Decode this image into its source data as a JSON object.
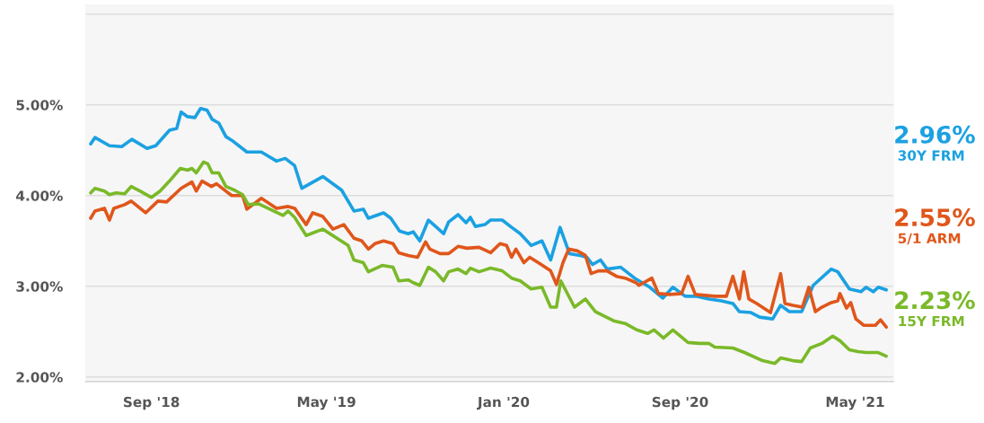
{
  "chart_data": {
    "type": "line",
    "xlim": [
      "2018-06-02",
      "2021-06-23"
    ],
    "ylim": [
      1.95,
      6.1
    ],
    "xticks": [
      {
        "value": "2018-09-01",
        "label": "Sep '18"
      },
      {
        "value": "2019-05-01",
        "label": "May '19"
      },
      {
        "value": "2020-01-01",
        "label": "Jan '20"
      },
      {
        "value": "2020-09-01",
        "label": "Sep '20"
      },
      {
        "value": "2021-05-01",
        "label": "May '21"
      }
    ],
    "yticks": [
      {
        "value": 2,
        "label": "2.00%"
      },
      {
        "value": 3,
        "label": "3.00%"
      },
      {
        "value": 4,
        "label": "4.00%"
      },
      {
        "value": 5,
        "label": "5.00%"
      },
      {
        "value": 6,
        "label": null
      }
    ],
    "grid": "y",
    "legend": false,
    "marker": "none",
    "line_style": "solid",
    "series": [
      {
        "name": "30Y FRM",
        "color": "#1ba1e2",
        "x": [
          "2018-06-09",
          "2018-06-15",
          "2018-07-05",
          "2018-07-22",
          "2018-08-05",
          "2018-08-26",
          "2018-09-07",
          "2018-09-26",
          "2018-10-06",
          "2018-10-12",
          "2018-10-21",
          "2018-10-31",
          "2018-11-08",
          "2018-11-17",
          "2018-11-24",
          "2018-12-03",
          "2018-12-13",
          "2018-12-21",
          "2019-01-11",
          "2019-01-31",
          "2019-02-21",
          "2019-03-05",
          "2019-03-18",
          "2019-03-28",
          "2019-04-26",
          "2019-05-22",
          "2019-06-08",
          "2019-06-21",
          "2019-06-28",
          "2019-07-19",
          "2019-07-29",
          "2019-08-10",
          "2019-08-22",
          "2019-08-29",
          "2019-09-07",
          "2019-09-19",
          "2019-09-29",
          "2019-10-10",
          "2019-10-17",
          "2019-10-30",
          "2019-11-10",
          "2019-11-16",
          "2019-11-23",
          "2019-12-06",
          "2019-12-14",
          "2019-12-30",
          "2020-01-12",
          "2020-01-24",
          "2020-02-08",
          "2020-02-23",
          "2020-03-06",
          "2020-03-19",
          "2020-04-01",
          "2020-04-16",
          "2020-04-25",
          "2020-05-03",
          "2020-05-14",
          "2020-05-23",
          "2020-06-11",
          "2020-06-30",
          "2020-07-21",
          "2020-08-08",
          "2020-08-22",
          "2020-09-08",
          "2020-09-24",
          "2020-10-11",
          "2020-10-28",
          "2020-11-13",
          "2020-11-22",
          "2020-12-08",
          "2020-12-20",
          "2021-01-07",
          "2021-01-18",
          "2021-01-30",
          "2021-02-16",
          "2021-03-04",
          "2021-03-29",
          "2021-04-07",
          "2021-04-23",
          "2021-05-09",
          "2021-05-16",
          "2021-05-26",
          "2021-06-02",
          "2021-06-13"
        ],
        "values": [
          4.57,
          4.64,
          4.55,
          4.54,
          4.62,
          4.52,
          4.55,
          4.72,
          4.74,
          4.92,
          4.87,
          4.86,
          4.96,
          4.94,
          4.84,
          4.8,
          4.65,
          4.61,
          4.48,
          4.48,
          4.38,
          4.41,
          4.33,
          4.08,
          4.21,
          4.06,
          3.83,
          3.85,
          3.75,
          3.81,
          3.75,
          3.61,
          3.58,
          3.6,
          3.5,
          3.73,
          3.66,
          3.58,
          3.71,
          3.79,
          3.7,
          3.76,
          3.66,
          3.68,
          3.73,
          3.73,
          3.65,
          3.58,
          3.45,
          3.5,
          3.29,
          3.65,
          3.36,
          3.34,
          3.32,
          3.24,
          3.29,
          3.19,
          3.21,
          3.09,
          2.99,
          2.87,
          2.99,
          2.89,
          2.89,
          2.86,
          2.84,
          2.81,
          2.72,
          2.71,
          2.66,
          2.64,
          2.79,
          2.72,
          2.72,
          3.01,
          3.19,
          3.16,
          2.97,
          2.94,
          2.99,
          2.94,
          2.99,
          2.96
        ]
      },
      {
        "name": "5/1 ARM",
        "color": "#e0561b",
        "x": [
          "2018-06-09",
          "2018-06-15",
          "2018-06-28",
          "2018-07-05",
          "2018-07-11",
          "2018-07-26",
          "2018-08-04",
          "2018-08-24",
          "2018-09-10",
          "2018-09-22",
          "2018-10-12",
          "2018-10-27",
          "2018-11-02",
          "2018-11-10",
          "2018-11-23",
          "2018-11-30",
          "2018-12-21",
          "2019-01-05",
          "2019-01-11",
          "2019-01-31",
          "2019-02-21",
          "2019-03-09",
          "2019-03-18",
          "2019-04-03",
          "2019-04-12",
          "2019-04-26",
          "2019-05-10",
          "2019-05-25",
          "2019-06-08",
          "2019-06-19",
          "2019-06-28",
          "2019-07-07",
          "2019-07-19",
          "2019-08-01",
          "2019-08-09",
          "2019-08-22",
          "2019-09-04",
          "2019-09-15",
          "2019-09-21",
          "2019-10-05",
          "2019-10-17",
          "2019-10-30",
          "2019-11-11",
          "2019-11-28",
          "2019-12-14",
          "2019-12-27",
          "2020-01-05",
          "2020-01-12",
          "2020-01-18",
          "2020-01-29",
          "2020-02-06",
          "2020-02-18",
          "2020-03-06",
          "2020-03-14",
          "2020-03-23",
          "2020-03-31",
          "2020-04-12",
          "2020-04-23",
          "2020-05-01",
          "2020-05-11",
          "2020-05-23",
          "2020-06-05",
          "2020-06-17",
          "2020-07-02",
          "2020-07-06",
          "2020-07-24",
          "2020-08-02",
          "2020-08-18",
          "2020-09-03",
          "2020-09-12",
          "2020-09-22",
          "2020-10-19",
          "2020-11-04",
          "2020-11-13",
          "2020-11-22",
          "2020-11-28",
          "2020-12-05",
          "2020-12-16",
          "2021-01-04",
          "2021-01-18",
          "2021-01-24",
          "2021-02-04",
          "2021-02-17",
          "2021-02-26",
          "2021-03-07",
          "2021-03-16",
          "2021-03-29",
          "2021-04-07",
          "2021-04-10",
          "2021-04-19",
          "2021-04-25",
          "2021-05-02",
          "2021-05-13",
          "2021-05-29",
          "2021-06-05",
          "2021-06-13"
        ],
        "values": [
          3.75,
          3.83,
          3.86,
          3.73,
          3.86,
          3.9,
          3.94,
          3.81,
          3.94,
          3.93,
          4.08,
          4.15,
          4.05,
          4.16,
          4.1,
          4.13,
          4.0,
          4.0,
          3.85,
          3.97,
          3.86,
          3.88,
          3.86,
          3.68,
          3.81,
          3.77,
          3.63,
          3.68,
          3.53,
          3.5,
          3.41,
          3.47,
          3.5,
          3.47,
          3.37,
          3.34,
          3.32,
          3.49,
          3.41,
          3.36,
          3.36,
          3.44,
          3.42,
          3.43,
          3.37,
          3.47,
          3.45,
          3.32,
          3.41,
          3.26,
          3.32,
          3.26,
          3.17,
          3.02,
          3.26,
          3.41,
          3.39,
          3.34,
          3.14,
          3.17,
          3.17,
          3.11,
          3.09,
          3.04,
          3.01,
          3.09,
          2.92,
          2.91,
          2.92,
          3.11,
          2.91,
          2.89,
          2.89,
          3.11,
          2.86,
          3.16,
          2.86,
          2.81,
          2.71,
          3.14,
          2.81,
          2.79,
          2.77,
          2.99,
          2.72,
          2.77,
          2.82,
          2.84,
          2.92,
          2.76,
          2.82,
          2.64,
          2.57,
          2.57,
          2.63,
          2.55
        ]
      },
      {
        "name": "15Y FRM",
        "color": "#7ab929",
        "x": [
          "2018-06-09",
          "2018-06-15",
          "2018-06-28",
          "2018-07-05",
          "2018-07-14",
          "2018-07-26",
          "2018-08-04",
          "2018-08-16",
          "2018-09-01",
          "2018-09-13",
          "2018-09-26",
          "2018-10-11",
          "2018-10-21",
          "2018-10-27",
          "2018-11-02",
          "2018-11-12",
          "2018-11-18",
          "2018-11-24",
          "2018-12-03",
          "2018-12-13",
          "2018-12-25",
          "2019-01-05",
          "2019-01-13",
          "2019-01-27",
          "2019-02-09",
          "2019-03-02",
          "2019-03-09",
          "2019-03-18",
          "2019-04-03",
          "2019-04-26",
          "2019-05-31",
          "2019-06-08",
          "2019-06-21",
          "2019-06-28",
          "2019-07-17",
          "2019-08-01",
          "2019-08-09",
          "2019-08-22",
          "2019-08-29",
          "2019-09-07",
          "2019-09-19",
          "2019-09-29",
          "2019-10-10",
          "2019-10-17",
          "2019-10-30",
          "2019-11-10",
          "2019-11-16",
          "2019-11-28",
          "2019-12-14",
          "2019-12-30",
          "2020-01-12",
          "2020-01-24",
          "2020-02-08",
          "2020-02-23",
          "2020-03-06",
          "2020-03-14",
          "2020-03-20",
          "2020-04-08",
          "2020-04-23",
          "2020-05-07",
          "2020-06-01",
          "2020-06-17",
          "2020-07-03",
          "2020-07-18",
          "2020-07-27",
          "2020-08-09",
          "2020-08-22",
          "2020-09-12",
          "2020-09-28",
          "2020-10-11",
          "2020-10-19",
          "2020-11-13",
          "2020-11-29",
          "2020-12-24",
          "2021-01-10",
          "2021-01-18",
          "2021-02-04",
          "2021-02-16",
          "2021-02-28",
          "2021-03-16",
          "2021-03-31",
          "2021-04-10",
          "2021-04-23",
          "2021-05-05",
          "2021-05-16",
          "2021-06-02",
          "2021-06-13"
        ],
        "values": [
          4.03,
          4.08,
          4.05,
          4.01,
          4.03,
          4.02,
          4.1,
          4.05,
          3.98,
          4.05,
          4.16,
          4.3,
          4.28,
          4.3,
          4.25,
          4.37,
          4.35,
          4.25,
          4.25,
          4.1,
          4.06,
          4.01,
          3.9,
          3.91,
          3.86,
          3.78,
          3.83,
          3.76,
          3.56,
          3.63,
          3.45,
          3.29,
          3.26,
          3.16,
          3.23,
          3.21,
          3.06,
          3.07,
          3.04,
          3.01,
          3.21,
          3.16,
          3.06,
          3.16,
          3.19,
          3.14,
          3.2,
          3.16,
          3.2,
          3.17,
          3.09,
          3.06,
          2.97,
          2.99,
          2.77,
          2.77,
          3.06,
          2.77,
          2.86,
          2.72,
          2.62,
          2.59,
          2.52,
          2.48,
          2.52,
          2.43,
          2.52,
          2.38,
          2.37,
          2.37,
          2.33,
          2.32,
          2.27,
          2.18,
          2.15,
          2.21,
          2.18,
          2.17,
          2.32,
          2.37,
          2.45,
          2.4,
          2.3,
          2.28,
          2.27,
          2.27,
          2.23
        ]
      }
    ],
    "annotations": [
      "2.96%",
      "2.55%",
      "2.23%"
    ]
  }
}
